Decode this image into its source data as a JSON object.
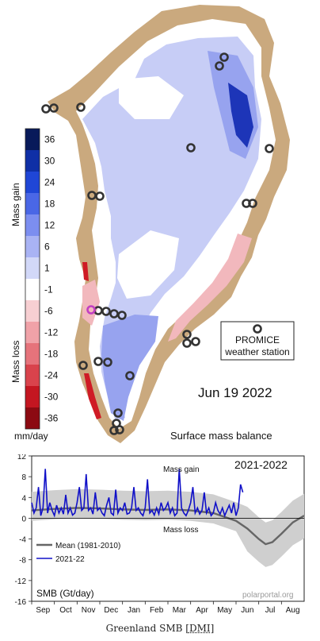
{
  "map": {
    "date": "Jun 19 2022",
    "subtitle": "Surface mass balance",
    "legend_box": {
      "title": "PROMICE",
      "subtitle": "weather station"
    },
    "colorbar": {
      "gain_label": "Mass gain",
      "loss_label": "Mass loss",
      "unit": "mm/day",
      "ticks": [
        "36",
        "30",
        "24",
        "18",
        "12",
        "6",
        "1",
        "-1",
        "-6",
        "-12",
        "-18",
        "-24",
        "-30",
        "-36"
      ],
      "colors": [
        "#081a5a",
        "#0f2fa6",
        "#1f46d6",
        "#4a67e6",
        "#7c8ef0",
        "#a9b3f4",
        "#d2d8f8",
        "#ffffff",
        "#f7cfd2",
        "#f0a2a8",
        "#e6737b",
        "#d9434c",
        "#c41621",
        "#8c0a12"
      ]
    },
    "colors": {
      "land": "#caa97e",
      "ice": "#ffffff",
      "light_gain": "#c7cdf6",
      "mid_gain": "#97a3ef",
      "strong_gain": "#1d35b8",
      "loss": "#f2b8bd",
      "red": "#cf1b25",
      "station": "#333333",
      "station_highlight": "#c23fc2"
    },
    "stations": {
      "count": 26,
      "highlight_count": 1
    }
  },
  "chart_data": {
    "type": "line",
    "title": "2021-2022",
    "annotations": [
      "Mass gain",
      "Mass loss"
    ],
    "ylabel": "SMB (Gt/day)",
    "source": "polarportal.org",
    "ylim": [
      -16,
      12
    ],
    "yticks": [
      12,
      8,
      4,
      0,
      -4,
      -8,
      -12,
      -16
    ],
    "categories": [
      "Sep",
      "Oct",
      "Nov",
      "Dec",
      "Jan",
      "Feb",
      "Mar",
      "Apr",
      "May",
      "Jun",
      "Jul",
      "Aug"
    ],
    "series": [
      {
        "name": "Mean (1981-2010)",
        "color": "#666666",
        "x": [
          0,
          1,
          2,
          3,
          4,
          5,
          6,
          7,
          8,
          9,
          9.5,
          10,
          10.3,
          10.6,
          11,
          11.5,
          12
        ],
        "values": [
          1.5,
          1.8,
          2.0,
          1.9,
          1.7,
          1.6,
          1.7,
          1.5,
          1.0,
          -0.5,
          -2.0,
          -4.0,
          -5.0,
          -4.6,
          -3.0,
          -0.8,
          0.5
        ]
      },
      {
        "name": "2021-22",
        "color": "#1010c8",
        "x": [
          0,
          0.1,
          0.2,
          0.3,
          0.4,
          0.5,
          0.6,
          0.7,
          0.8,
          0.9,
          1.0,
          1.1,
          1.2,
          1.3,
          1.4,
          1.5,
          1.6,
          1.7,
          1.8,
          1.9,
          2.0,
          2.1,
          2.2,
          2.3,
          2.4,
          2.5,
          2.6,
          2.7,
          2.8,
          2.9,
          3.0,
          3.1,
          3.2,
          3.3,
          3.4,
          3.5,
          3.6,
          3.7,
          3.8,
          3.9,
          4.0,
          4.1,
          4.2,
          4.3,
          4.4,
          4.5,
          4.6,
          4.7,
          4.8,
          4.9,
          5.0,
          5.1,
          5.2,
          5.3,
          5.4,
          5.5,
          5.6,
          5.7,
          5.8,
          5.9,
          6.0,
          6.1,
          6.2,
          6.3,
          6.4,
          6.5,
          6.6,
          6.7,
          6.8,
          6.9,
          7.0,
          7.1,
          7.2,
          7.3,
          7.4,
          7.5,
          7.6,
          7.7,
          7.8,
          7.9,
          8.0,
          8.1,
          8.2,
          8.3,
          8.4,
          8.5,
          8.6,
          8.7,
          8.8,
          8.9,
          9.0,
          9.1,
          9.2,
          9.3
        ],
        "values": [
          3,
          1,
          2,
          6,
          0.5,
          2,
          9.5,
          1,
          3,
          1.5,
          0.5,
          2.5,
          1,
          2,
          0.8,
          4.5,
          1,
          2,
          0.6,
          1,
          3,
          6,
          1.5,
          2,
          8.5,
          1.5,
          2,
          0.8,
          5,
          1.5,
          2,
          1,
          0.5,
          2.5,
          4,
          1,
          0.6,
          5.5,
          1,
          2,
          1.5,
          3,
          0.8,
          1,
          2,
          6,
          1.5,
          2,
          1,
          0.5,
          2,
          7.5,
          1,
          1.5,
          0.6,
          2,
          0.8,
          3,
          1.5,
          2,
          3,
          1,
          2,
          0.5,
          1,
          9.5,
          2,
          1,
          0.5,
          1.5,
          3,
          6,
          1,
          2,
          0.8,
          1.5,
          5,
          1,
          2,
          0.5,
          1,
          3,
          1.5,
          0.8,
          2,
          0.5,
          1.5,
          2.5,
          1,
          3,
          0.5,
          2,
          6.5,
          5
        ]
      }
    ],
    "spread_band": {
      "color": "#cfcfcf"
    }
  },
  "caption": {
    "text": "Greenland SMB [",
    "link": "DMI",
    "end": "]"
  }
}
